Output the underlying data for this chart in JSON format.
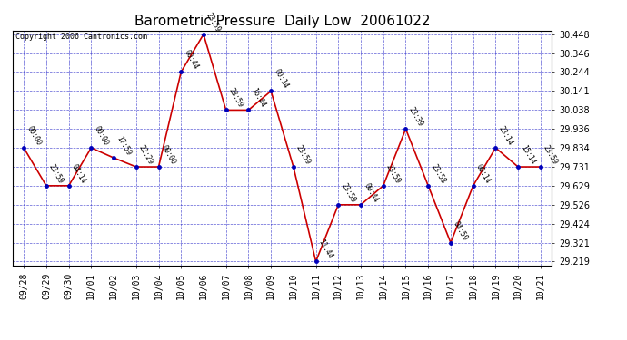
{
  "title": "Barometric Pressure  Daily Low  20061022",
  "copyright": "Copyright 2006 Cantronics.com",
  "x_labels": [
    "09/28",
    "09/29",
    "09/30",
    "10/01",
    "10/02",
    "10/03",
    "10/04",
    "10/05",
    "10/06",
    "10/07",
    "10/08",
    "10/09",
    "10/10",
    "10/11",
    "10/12",
    "10/13",
    "10/14",
    "10/15",
    "10/16",
    "10/17",
    "10/18",
    "10/19",
    "10/20",
    "10/21"
  ],
  "y_values": [
    29.834,
    29.629,
    29.629,
    29.834,
    29.78,
    29.731,
    29.731,
    30.244,
    30.448,
    30.038,
    30.038,
    30.141,
    29.731,
    29.219,
    29.526,
    29.526,
    29.629,
    29.936,
    29.629,
    29.321,
    29.629,
    29.834,
    29.731,
    29.731
  ],
  "point_labels": [
    "00:00",
    "23:59",
    "04:14",
    "00:00",
    "17:59",
    "22:29",
    "00:00",
    "00:44",
    "23:59",
    "23:59",
    "16:44",
    "00:14",
    "23:59",
    "11:44",
    "23:59",
    "00:44",
    "23:59",
    "23:39",
    "23:58",
    "04:59",
    "00:14",
    "23:14",
    "15:14",
    "23:59"
  ],
  "ylim_min": 29.219,
  "ylim_max": 30.448,
  "yticks": [
    29.219,
    29.321,
    29.424,
    29.526,
    29.629,
    29.731,
    29.834,
    29.936,
    30.038,
    30.141,
    30.244,
    30.346,
    30.448
  ],
  "line_color": "#cc0000",
  "marker_color": "#0000bb",
  "plot_bg_color": "#ffffff",
  "fig_bg_color": "#ffffff",
  "grid_color": "#3333cc",
  "title_fontsize": 11,
  "tick_fontsize": 7,
  "copyright_fontsize": 6,
  "label_fontsize": 5.5
}
